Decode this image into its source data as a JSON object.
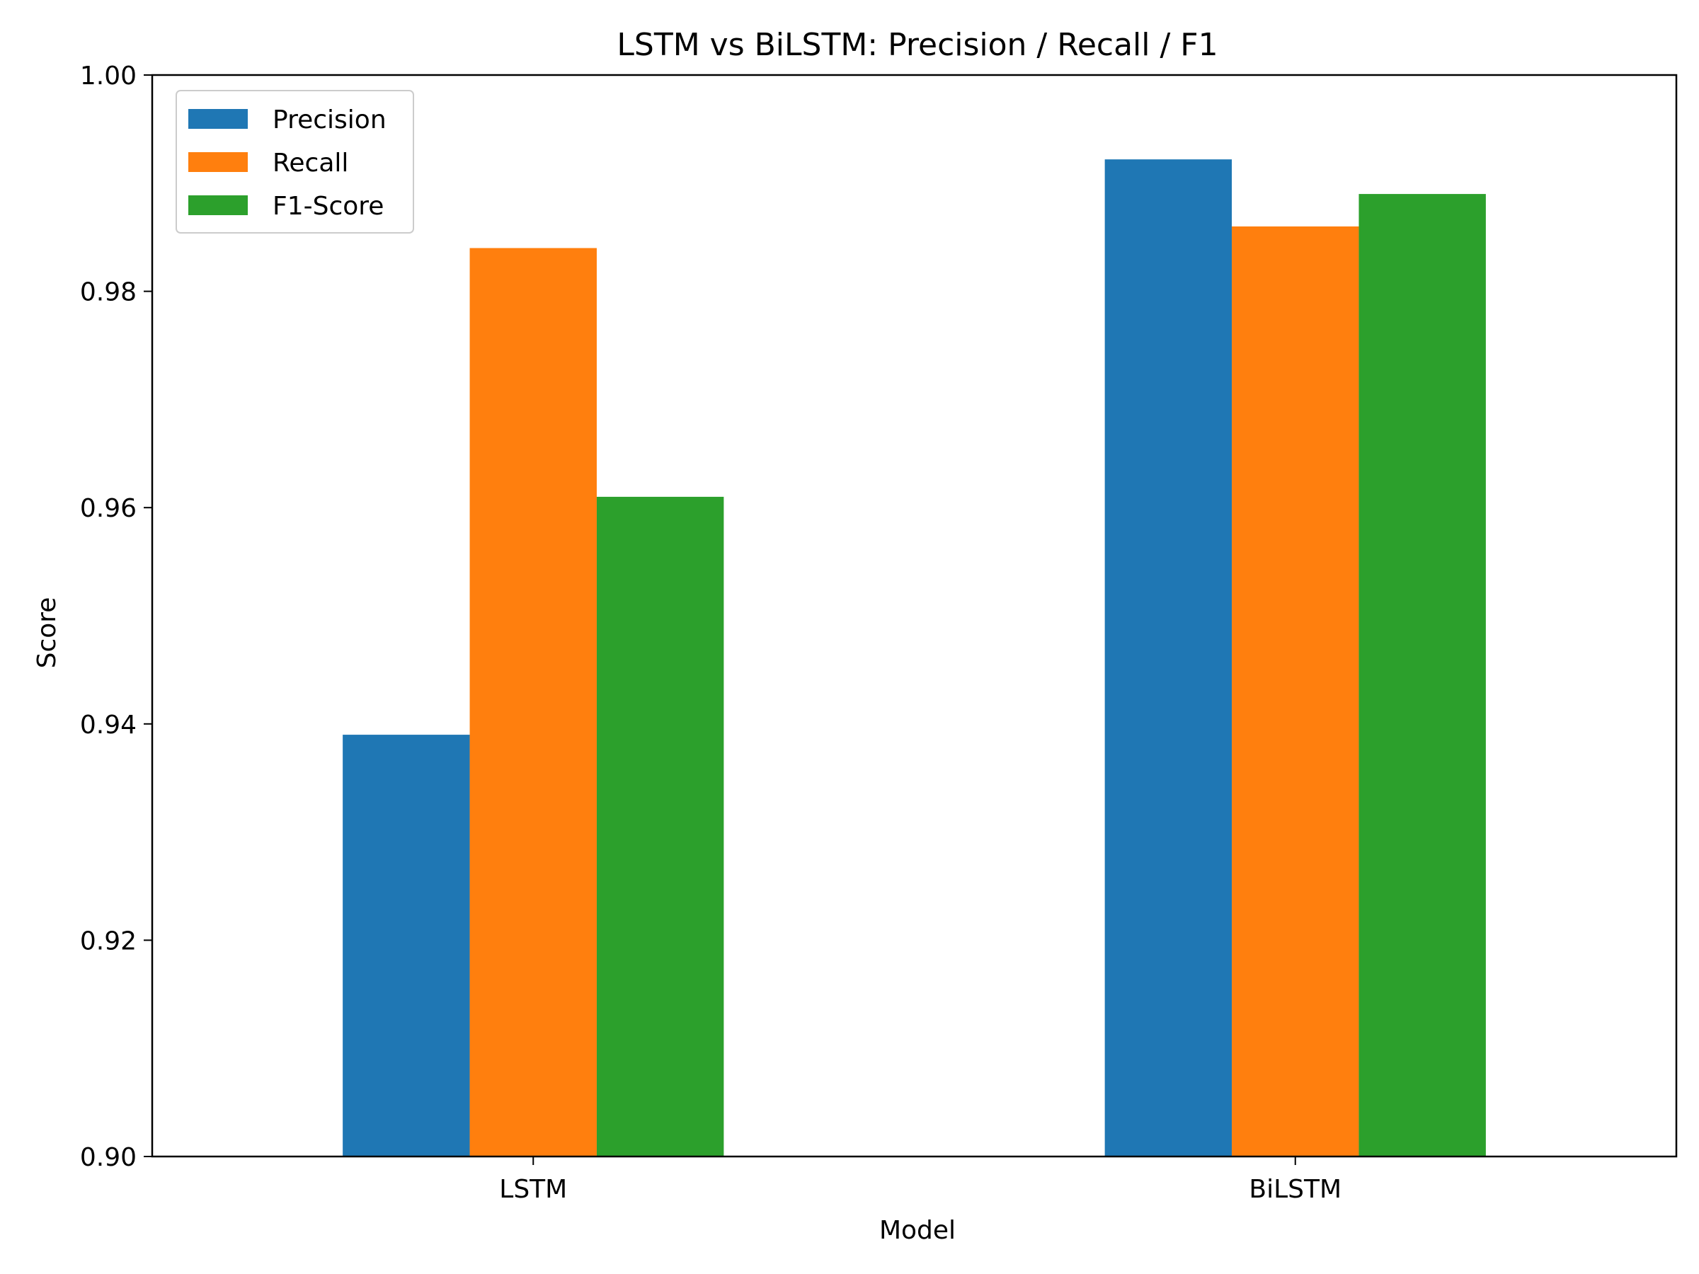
{
  "chart_data": {
    "type": "bar",
    "title": "LSTM vs BiLSTM: Precision / Recall / F1",
    "xlabel": "Model",
    "ylabel": "Score",
    "categories": [
      "LSTM",
      "BiLSTM"
    ],
    "ylim": [
      0.9,
      1.0
    ],
    "yticks": [
      0.9,
      0.92,
      0.94,
      0.96,
      0.98,
      1.0
    ],
    "ytick_labels": [
      "0.90",
      "0.92",
      "0.94",
      "0.96",
      "0.98",
      "1.00"
    ],
    "grid": false,
    "legend_position": "top-left",
    "series": [
      {
        "name": "Precision",
        "color": "#1f77b4",
        "values": [
          0.939,
          0.9922
        ]
      },
      {
        "name": "Recall",
        "color": "#ff7f0e",
        "values": [
          0.984,
          0.986
        ]
      },
      {
        "name": "F1-Score",
        "color": "#2ca02c",
        "values": [
          0.961,
          0.989
        ]
      }
    ]
  }
}
